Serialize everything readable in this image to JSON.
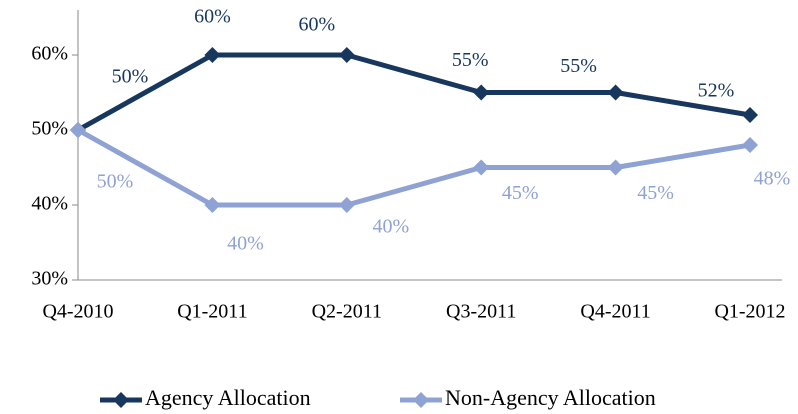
{
  "chart_data": {
    "type": "line",
    "categories": [
      "Q4-2010",
      "Q1-2011",
      "Q2-2011",
      "Q3-2011",
      "Q4-2011",
      "Q1-2012"
    ],
    "series": [
      {
        "name": "Agency Allocation",
        "color": "#17375e",
        "values": [
          50,
          60,
          60,
          55,
          55,
          52
        ],
        "value_labels": [
          "50%",
          "60%",
          "60%",
          "55%",
          "55%",
          "52%"
        ]
      },
      {
        "name": "Non-Agency Allocation",
        "color": "#8fa2d4",
        "values": [
          50,
          40,
          40,
          45,
          45,
          48
        ],
        "value_labels": [
          "50%",
          "40%",
          "40%",
          "45%",
          "45%",
          "48%"
        ]
      }
    ],
    "ylim": [
      30,
      66
    ],
    "yticks": [
      {
        "value": 30,
        "label": "30%"
      },
      {
        "value": 40,
        "label": "40%"
      },
      {
        "value": 50,
        "label": "50%"
      },
      {
        "value": 60,
        "label": "60%"
      }
    ],
    "grid": false,
    "legend": "bottom"
  }
}
